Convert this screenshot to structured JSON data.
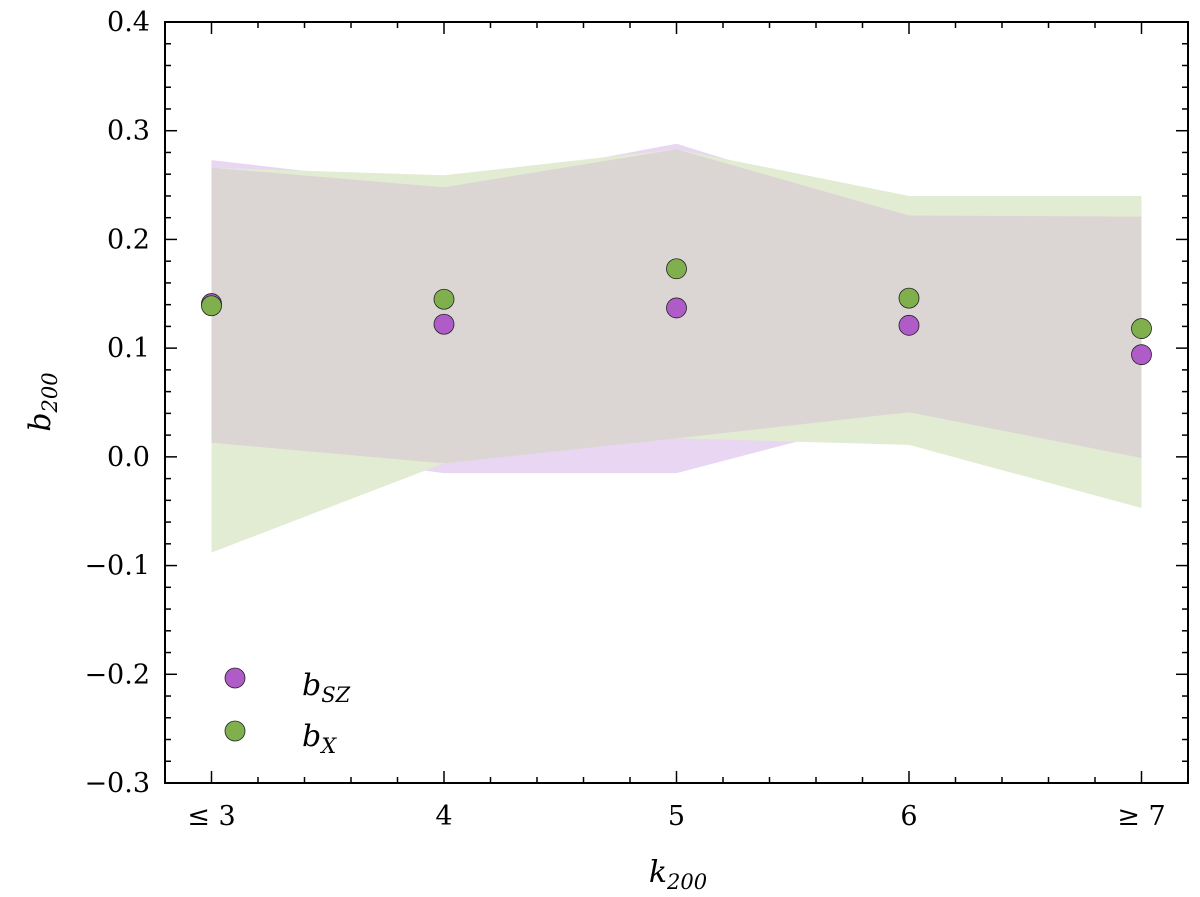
{
  "chart_data": {
    "type": "scatter",
    "categories": [
      "≤ 3",
      "4",
      "5",
      "6",
      "≥ 7"
    ],
    "x": [
      1,
      2,
      3,
      4,
      5
    ],
    "xlim": [
      0.8,
      5.2
    ],
    "ylim": [
      -0.3,
      0.4
    ],
    "yticks": [
      -0.3,
      -0.2,
      -0.1,
      0.0,
      0.1,
      0.2,
      0.3,
      0.4
    ],
    "ytick_labels": [
      "−0.3",
      "−0.2",
      "−0.1",
      "0.0",
      "0.1",
      "0.2",
      "0.3",
      "0.4"
    ],
    "xlabel": {
      "main": "k",
      "sub": "200"
    },
    "ylabel": {
      "main": "b",
      "sub": "200"
    },
    "grid": false,
    "legend_position": "lower-left",
    "series": [
      {
        "name": "b_SZ",
        "label_main": "b",
        "label_sub": "SZ",
        "color": "#b05cc8",
        "band_color": "#e8d6f2",
        "values": [
          0.141,
          0.122,
          0.137,
          0.121,
          0.094
        ],
        "band_upper": [
          0.273,
          0.248,
          0.288,
          0.222,
          0.221
        ],
        "band_lower": [
          0.013,
          -0.015,
          -0.015,
          0.041,
          -0.001
        ]
      },
      {
        "name": "b_X",
        "label_main": "b",
        "label_sub": "X",
        "color": "#7fb04d",
        "band_color": "#e2ecd3",
        "values": [
          0.139,
          0.145,
          0.173,
          0.146,
          0.118
        ],
        "band_upper": [
          0.266,
          0.259,
          0.283,
          0.24,
          0.24
        ],
        "band_lower": [
          -0.088,
          -0.006,
          0.017,
          0.011,
          -0.047
        ]
      }
    ],
    "overlap_color": "#dbd6d4"
  }
}
